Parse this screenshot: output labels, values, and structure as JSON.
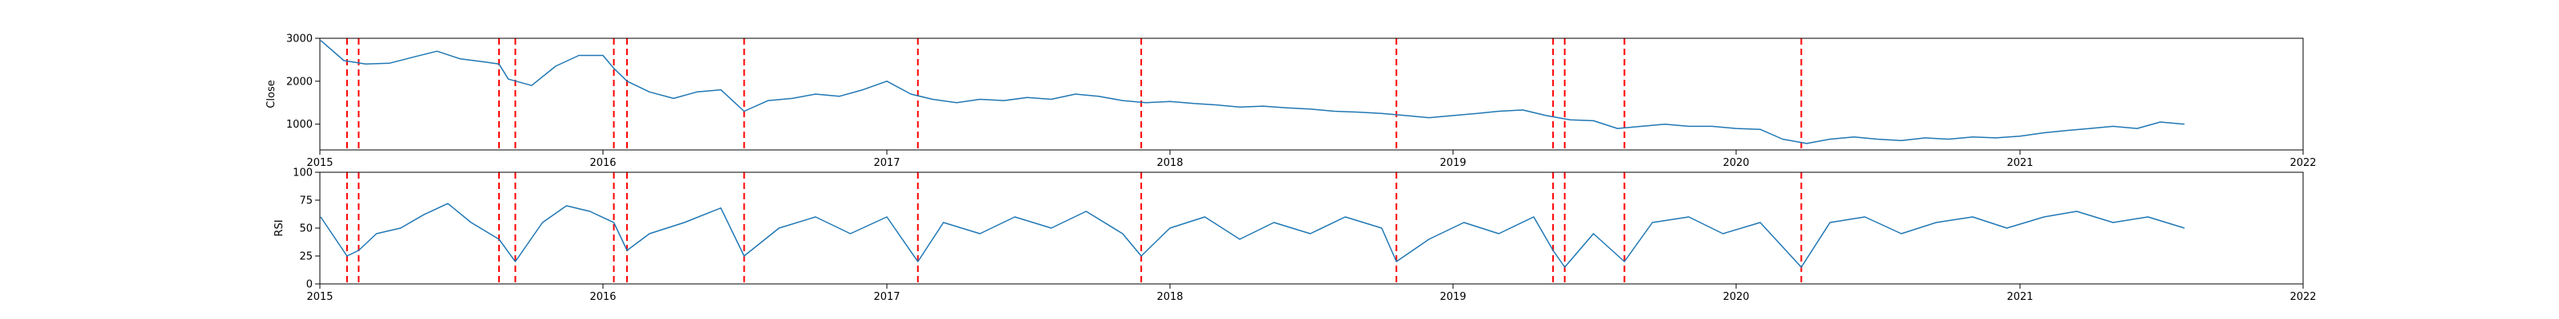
{
  "chart_data": [
    {
      "type": "line",
      "title": "",
      "xlabel": "",
      "ylabel": "Close",
      "xlim": [
        "2015-01-01",
        "2022-01-01"
      ],
      "ylim": [
        400,
        3000
      ],
      "x_ticks": [
        "2015",
        "2016",
        "2017",
        "2018",
        "2019",
        "2020",
        "2021",
        "2022"
      ],
      "y_ticks": [
        1000,
        2000,
        3000
      ],
      "grid": false,
      "color": "#1f77b4",
      "series": [
        {
          "x": [
            "2015-01-02",
            "2015-02-01",
            "2015-03-01",
            "2015-04-01",
            "2015-05-01",
            "2015-06-01",
            "2015-07-01",
            "2015-08-01",
            "2015-08-20",
            "2015-09-01",
            "2015-10-01",
            "2015-11-01",
            "2015-12-01",
            "2016-01-01",
            "2016-01-15",
            "2016-02-01",
            "2016-03-01",
            "2016-04-01",
            "2016-05-01",
            "2016-06-01",
            "2016-07-01",
            "2016-08-01",
            "2016-09-01",
            "2016-10-01",
            "2016-11-01",
            "2016-12-01",
            "2017-01-01",
            "2017-02-01",
            "2017-03-01",
            "2017-04-01",
            "2017-05-01",
            "2017-06-01",
            "2017-07-01",
            "2017-08-01",
            "2017-09-01",
            "2017-10-01",
            "2017-11-01",
            "2017-12-01",
            "2018-01-01",
            "2018-02-01",
            "2018-03-01",
            "2018-04-01",
            "2018-05-01",
            "2018-06-01",
            "2018-07-01",
            "2018-08-01",
            "2018-09-01",
            "2018-10-01",
            "2018-11-01",
            "2018-12-01",
            "2019-01-01",
            "2019-02-01",
            "2019-03-01",
            "2019-04-01",
            "2019-05-01",
            "2019-06-01",
            "2019-07-01",
            "2019-08-01",
            "2019-09-01",
            "2019-10-01",
            "2019-11-01",
            "2019-12-01",
            "2020-01-01",
            "2020-02-01",
            "2020-03-01",
            "2020-04-01",
            "2020-05-01",
            "2020-06-01",
            "2020-07-01",
            "2020-08-01",
            "2020-09-01",
            "2020-10-01",
            "2020-11-01",
            "2020-12-01",
            "2021-01-01",
            "2021-02-01",
            "2021-03-01",
            "2021-04-01",
            "2021-05-01",
            "2021-06-01",
            "2021-07-01",
            "2021-08-01"
          ],
          "y": [
            2950,
            2480,
            2400,
            2420,
            2560,
            2700,
            2520,
            2450,
            2400,
            2050,
            1900,
            2350,
            2600,
            2600,
            2300,
            2000,
            1750,
            1600,
            1750,
            1800,
            1300,
            1550,
            1600,
            1700,
            1650,
            1800,
            2000,
            1700,
            1580,
            1500,
            1580,
            1550,
            1620,
            1580,
            1700,
            1650,
            1550,
            1500,
            1530,
            1480,
            1450,
            1400,
            1420,
            1380,
            1350,
            1300,
            1280,
            1250,
            1200,
            1150,
            1200,
            1250,
            1300,
            1330,
            1200,
            1100,
            1080,
            900,
            950,
            1000,
            950,
            950,
            900,
            880,
            650,
            550,
            650,
            700,
            650,
            620,
            680,
            650,
            700,
            680,
            720,
            800,
            850,
            900,
            950,
            900,
            1050,
            1000
          ]
        }
      ],
      "markers_x": [
        "2015-02-05",
        "2015-02-20",
        "2015-08-20",
        "2015-09-10",
        "2016-01-15",
        "2016-02-01",
        "2016-07-01",
        "2017-02-10",
        "2017-11-25",
        "2018-10-20",
        "2019-05-10",
        "2019-05-25",
        "2019-08-10",
        "2020-03-25"
      ]
    },
    {
      "type": "line",
      "title": "",
      "xlabel": "",
      "ylabel": "RSI",
      "xlim": [
        "2015-01-01",
        "2022-01-01"
      ],
      "ylim": [
        0,
        100
      ],
      "x_ticks": [
        "2015",
        "2016",
        "2017",
        "2018",
        "2019",
        "2020",
        "2021",
        "2022"
      ],
      "y_ticks": [
        0,
        25,
        50,
        75,
        100
      ],
      "grid": false,
      "color": "#1f77b4",
      "series": [
        {
          "x": [
            "2015-01-02",
            "2015-02-05",
            "2015-02-20",
            "2015-03-15",
            "2015-04-15",
            "2015-05-15",
            "2015-06-15",
            "2015-07-15",
            "2015-08-20",
            "2015-09-10",
            "2015-10-15",
            "2015-11-15",
            "2015-12-15",
            "2016-01-15",
            "2016-02-01",
            "2016-03-01",
            "2016-04-15",
            "2016-06-01",
            "2016-07-01",
            "2016-08-15",
            "2016-10-01",
            "2016-11-15",
            "2017-01-01",
            "2017-02-10",
            "2017-03-15",
            "2017-05-01",
            "2017-06-15",
            "2017-08-01",
            "2017-09-15",
            "2017-11-01",
            "2017-11-25",
            "2018-01-01",
            "2018-02-15",
            "2018-04-01",
            "2018-05-15",
            "2018-07-01",
            "2018-08-15",
            "2018-10-01",
            "2018-10-20",
            "2018-12-01",
            "2019-01-15",
            "2019-03-01",
            "2019-04-15",
            "2019-05-10",
            "2019-05-25",
            "2019-07-01",
            "2019-08-10",
            "2019-09-15",
            "2019-11-01",
            "2019-12-15",
            "2020-02-01",
            "2020-03-25",
            "2020-05-01",
            "2020-06-15",
            "2020-08-01",
            "2020-09-15",
            "2020-11-01",
            "2020-12-15",
            "2021-02-01",
            "2021-03-15",
            "2021-05-01",
            "2021-06-15",
            "2021-08-01"
          ],
          "y": [
            60,
            25,
            30,
            45,
            50,
            62,
            72,
            55,
            40,
            20,
            55,
            70,
            65,
            55,
            30,
            45,
            55,
            68,
            25,
            50,
            60,
            45,
            60,
            20,
            55,
            45,
            60,
            50,
            65,
            45,
            25,
            50,
            60,
            40,
            55,
            45,
            60,
            50,
            20,
            40,
            55,
            45,
            60,
            30,
            15,
            45,
            20,
            55,
            60,
            45,
            55,
            15,
            55,
            60,
            45,
            55,
            60,
            50,
            60,
            65,
            55,
            60,
            50
          ]
        }
      ],
      "markers_x": [
        "2015-02-05",
        "2015-02-20",
        "2015-08-20",
        "2015-09-10",
        "2016-01-15",
        "2016-02-01",
        "2016-07-01",
        "2017-02-10",
        "2017-11-25",
        "2018-10-20",
        "2019-05-10",
        "2019-05-25",
        "2019-08-10",
        "2020-03-25"
      ]
    }
  ]
}
